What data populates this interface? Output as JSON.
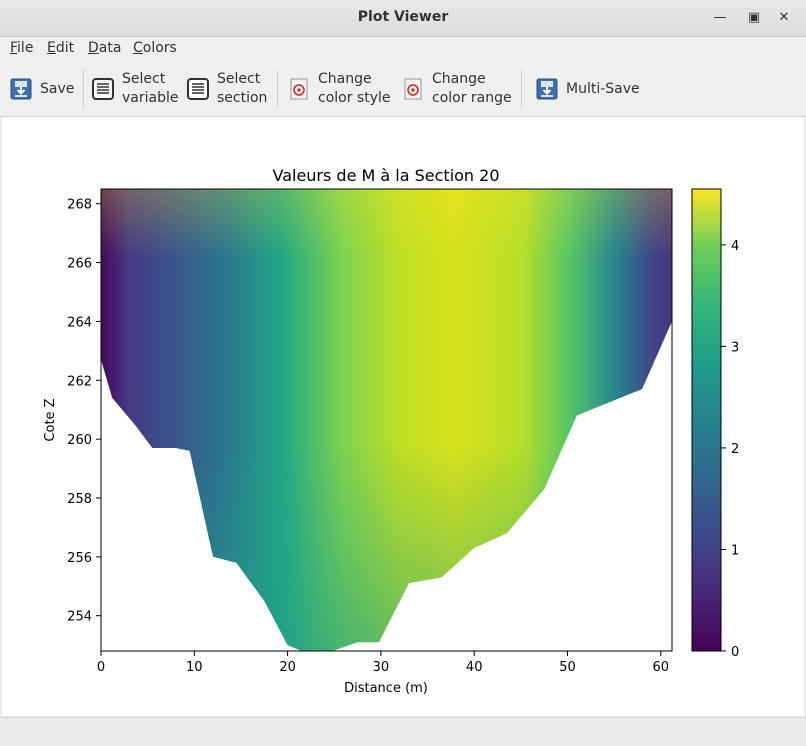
{
  "window": {
    "title": "Plot Viewer"
  },
  "menu": {
    "file": {
      "u": "F",
      "rest": "ile"
    },
    "edit": {
      "u": "E",
      "rest": "dit"
    },
    "data": {
      "u": "D",
      "rest": "ata"
    },
    "colors": {
      "u": "C",
      "rest": "olors"
    }
  },
  "toolbar": {
    "save": "Save",
    "select_variable": "Select\nvariable",
    "select_section": "Select\nsection",
    "change_color_style": "Change\ncolor style",
    "change_color_range": "Change\ncolor range",
    "multi_save": "Multi-Save"
  },
  "chart_data": {
    "type": "heatmap",
    "title": "Valeurs de M à la Section 20",
    "xlabel": "Distance (m)",
    "ylabel": "Cote Z",
    "xlim": [
      0,
      61.2
    ],
    "ylim": [
      252.8,
      268.5
    ],
    "x_ticks": [
      "0",
      "10",
      "20",
      "30",
      "40",
      "50",
      "60"
    ],
    "y_ticks": [
      "254",
      "256",
      "258",
      "260",
      "262",
      "264",
      "266",
      "268"
    ],
    "colorbar": {
      "range": [
        0,
        4.55
      ],
      "ticks": [
        "0",
        "1",
        "2",
        "3",
        "4"
      ],
      "colormap": "viridis"
    },
    "bed_profile": [
      [
        0,
        262.7
      ],
      [
        1.2,
        261.4
      ],
      [
        3.6,
        260.5
      ],
      [
        5.5,
        259.7
      ],
      [
        8,
        259.7
      ],
      [
        9.5,
        259.6
      ],
      [
        12,
        256.0
      ],
      [
        14.5,
        255.8
      ],
      [
        17.5,
        254.5
      ],
      [
        20,
        253.0
      ],
      [
        23,
        252.6
      ],
      [
        27.5,
        253.1
      ],
      [
        29.8,
        253.1
      ],
      [
        33,
        255.1
      ],
      [
        36.5,
        255.3
      ],
      [
        40,
        256.3
      ],
      [
        43.5,
        256.8
      ],
      [
        47.5,
        258.3
      ],
      [
        51,
        260.8
      ],
      [
        52.5,
        261.0
      ],
      [
        58,
        261.7
      ],
      [
        61.2,
        264.0
      ]
    ],
    "surface_profile": [
      [
        0,
        262.7
      ],
      [
        0,
        268.5
      ],
      [
        61.2,
        268.5
      ],
      [
        61.2,
        264.0
      ]
    ],
    "max_value_location": {
      "x": 40,
      "z": 268.3,
      "value": 4.5
    }
  }
}
